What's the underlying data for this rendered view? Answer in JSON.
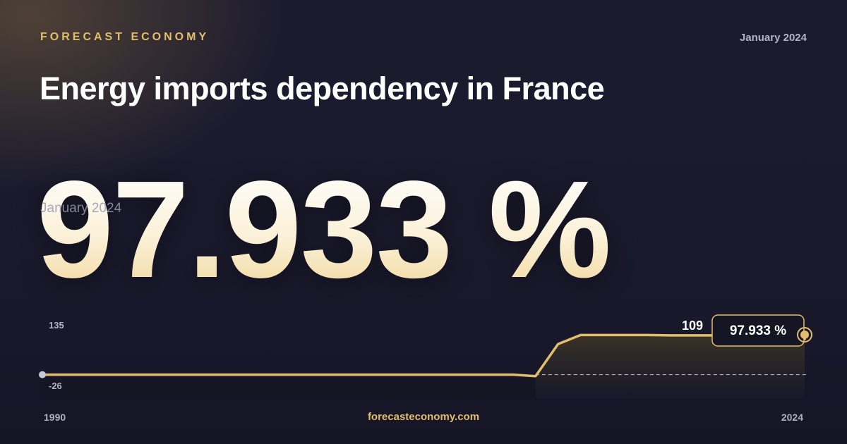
{
  "brand": "FORECAST ECONOMY",
  "date_top": "January 2024",
  "title": "Energy imports dependency in France",
  "big_value": "97.933 %",
  "overlay_date": "January 2024",
  "footer_site": "forecasteconomy.com",
  "colors": {
    "accent": "#e2bd6c",
    "background": "#1a1a2d",
    "text": "#ffffff"
  },
  "chart_data": {
    "type": "area",
    "title": "Energy imports dependency in France",
    "x_labels": [
      "1990",
      "2024"
    ],
    "y_tick_labels": [
      "135",
      "-26"
    ],
    "ylim": [
      -26,
      135
    ],
    "x": [
      "1990",
      "1991",
      "1992",
      "1993",
      "1994",
      "1995",
      "1996",
      "1997",
      "1998",
      "1999",
      "2000",
      "2001",
      "2002",
      "2003",
      "2004",
      "2005",
      "2006",
      "2007",
      "2008",
      "2009",
      "2010",
      "2011",
      "2012",
      "2013",
      "2014",
      "2015",
      "2016",
      "2017",
      "2018",
      "2019",
      "2020",
      "2021",
      "2022",
      "2023",
      "2024"
    ],
    "values": [
      0,
      0,
      0,
      0,
      0,
      0,
      0,
      0,
      0,
      0,
      0,
      0,
      0,
      0,
      0,
      0,
      0,
      0,
      0,
      0,
      0,
      0,
      -4,
      84,
      109,
      109,
      109,
      109,
      108,
      108,
      108,
      109,
      109,
      109,
      97.933
    ],
    "peak_label": "109",
    "last_value_label": "97.933 %",
    "grid": false,
    "legend": "none"
  }
}
